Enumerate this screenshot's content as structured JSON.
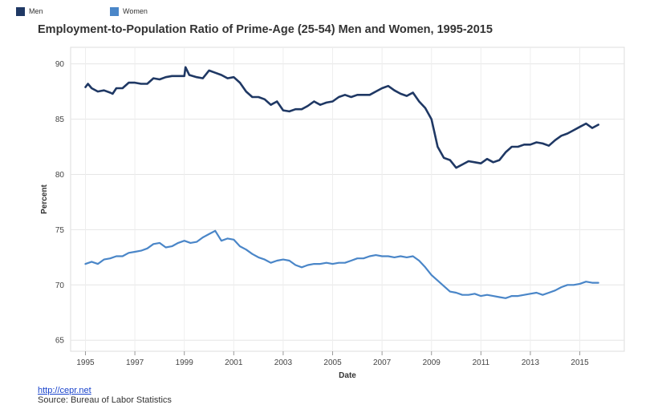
{
  "legend": [
    {
      "label": "Men",
      "color": "#1f3864"
    },
    {
      "label": "Women",
      "color": "#4a86c8"
    }
  ],
  "footer": {
    "link": "http://cepr.net",
    "source": "Source: Bureau of Labor Statistics"
  },
  "chart_data": {
    "type": "line",
    "title": "Employment-to-Population Ratio of Prime-Age (25-54) Men and Women, 1995-2015",
    "xlabel": "Date",
    "ylabel": "Percent",
    "xlim": [
      1994.4,
      2016.8
    ],
    "ylim": [
      64,
      91.5
    ],
    "xticks": [
      1995,
      1997,
      1999,
      2001,
      2003,
      2005,
      2007,
      2009,
      2011,
      2013,
      2015
    ],
    "yticks": [
      65,
      70,
      75,
      80,
      85,
      90
    ],
    "grid": true,
    "legend_position": "top-left",
    "series": [
      {
        "name": "Men",
        "color": "#1f3864",
        "x": [
          1995.0,
          1995.1,
          1995.25,
          1995.5,
          1995.75,
          1996.0,
          1996.1,
          1996.25,
          1996.5,
          1996.75,
          1997.0,
          1997.25,
          1997.5,
          1997.75,
          1998.0,
          1998.25,
          1998.5,
          1998.75,
          1999.0,
          1999.05,
          1999.2,
          1999.5,
          1999.75,
          2000.0,
          2000.25,
          2000.5,
          2000.75,
          2001.0,
          2001.25,
          2001.5,
          2001.75,
          2002.0,
          2002.25,
          2002.5,
          2002.75,
          2003.0,
          2003.25,
          2003.5,
          2003.75,
          2004.0,
          2004.25,
          2004.5,
          2004.75,
          2005.0,
          2005.25,
          2005.5,
          2005.75,
          2006.0,
          2006.25,
          2006.5,
          2006.75,
          2007.0,
          2007.25,
          2007.5,
          2007.75,
          2008.0,
          2008.25,
          2008.5,
          2008.75,
          2009.0,
          2009.1,
          2009.25,
          2009.5,
          2009.75,
          2010.0,
          2010.25,
          2010.5,
          2010.75,
          2011.0,
          2011.25,
          2011.5,
          2011.75,
          2012.0,
          2012.25,
          2012.5,
          2012.75,
          2013.0,
          2013.25,
          2013.5,
          2013.75,
          2014.0,
          2014.25,
          2014.5,
          2014.75,
          2015.0,
          2015.25,
          2015.5,
          2015.75
        ],
        "values": [
          87.9,
          88.2,
          87.8,
          87.5,
          87.6,
          87.4,
          87.3,
          87.8,
          87.8,
          88.3,
          88.3,
          88.2,
          88.2,
          88.7,
          88.6,
          88.8,
          88.9,
          88.9,
          88.9,
          89.7,
          89.0,
          88.8,
          88.7,
          89.4,
          89.2,
          89.0,
          88.7,
          88.8,
          88.3,
          87.5,
          87.0,
          87.0,
          86.8,
          86.3,
          86.6,
          85.8,
          85.7,
          85.9,
          85.9,
          86.2,
          86.6,
          86.3,
          86.5,
          86.6,
          87.0,
          87.2,
          87.0,
          87.2,
          87.2,
          87.2,
          87.5,
          87.8,
          88.0,
          87.6,
          87.3,
          87.1,
          87.4,
          86.6,
          86.0,
          85.0,
          84.0,
          82.5,
          81.5,
          81.3,
          80.6,
          80.9,
          81.2,
          81.1,
          81.0,
          81.4,
          81.1,
          81.3,
          82.0,
          82.5,
          82.5,
          82.7,
          82.7,
          82.9,
          82.8,
          82.6,
          83.1,
          83.5,
          83.7,
          84.0,
          84.3,
          84.6,
          84.2,
          84.5
        ]
      },
      {
        "name": "Women",
        "color": "#4a86c8",
        "x": [
          1995.0,
          1995.25,
          1995.5,
          1995.75,
          1996.0,
          1996.25,
          1996.5,
          1996.75,
          1997.0,
          1997.25,
          1997.5,
          1997.75,
          1998.0,
          1998.25,
          1998.5,
          1998.75,
          1999.0,
          1999.25,
          1999.5,
          1999.75,
          2000.0,
          2000.25,
          2000.5,
          2000.75,
          2001.0,
          2001.25,
          2001.5,
          2001.75,
          2002.0,
          2002.25,
          2002.5,
          2002.75,
          2003.0,
          2003.25,
          2003.5,
          2003.75,
          2004.0,
          2004.25,
          2004.5,
          2004.75,
          2005.0,
          2005.25,
          2005.5,
          2005.75,
          2006.0,
          2006.25,
          2006.5,
          2006.75,
          2007.0,
          2007.25,
          2007.5,
          2007.75,
          2008.0,
          2008.25,
          2008.5,
          2008.75,
          2009.0,
          2009.25,
          2009.5,
          2009.75,
          2010.0,
          2010.25,
          2010.5,
          2010.75,
          2011.0,
          2011.25,
          2011.5,
          2011.75,
          2012.0,
          2012.25,
          2012.5,
          2012.75,
          2013.0,
          2013.25,
          2013.5,
          2013.75,
          2014.0,
          2014.25,
          2014.5,
          2014.75,
          2015.0,
          2015.25,
          2015.5,
          2015.75
        ],
        "values": [
          71.9,
          72.1,
          71.9,
          72.3,
          72.4,
          72.6,
          72.6,
          72.9,
          73.0,
          73.1,
          73.3,
          73.7,
          73.8,
          73.4,
          73.5,
          73.8,
          74.0,
          73.8,
          73.9,
          74.3,
          74.6,
          74.9,
          74.0,
          74.2,
          74.1,
          73.5,
          73.2,
          72.8,
          72.5,
          72.3,
          72.0,
          72.2,
          72.3,
          72.2,
          71.8,
          71.6,
          71.8,
          71.9,
          71.9,
          72.0,
          71.9,
          72.0,
          72.0,
          72.2,
          72.4,
          72.4,
          72.6,
          72.7,
          72.6,
          72.6,
          72.5,
          72.6,
          72.5,
          72.6,
          72.2,
          71.6,
          70.9,
          70.4,
          69.9,
          69.4,
          69.3,
          69.1,
          69.1,
          69.2,
          69.0,
          69.1,
          69.0,
          68.9,
          68.8,
          69.0,
          69.0,
          69.1,
          69.2,
          69.3,
          69.1,
          69.3,
          69.5,
          69.8,
          70.0,
          70.0,
          70.1,
          70.3,
          70.2,
          70.2
        ]
      }
    ]
  }
}
